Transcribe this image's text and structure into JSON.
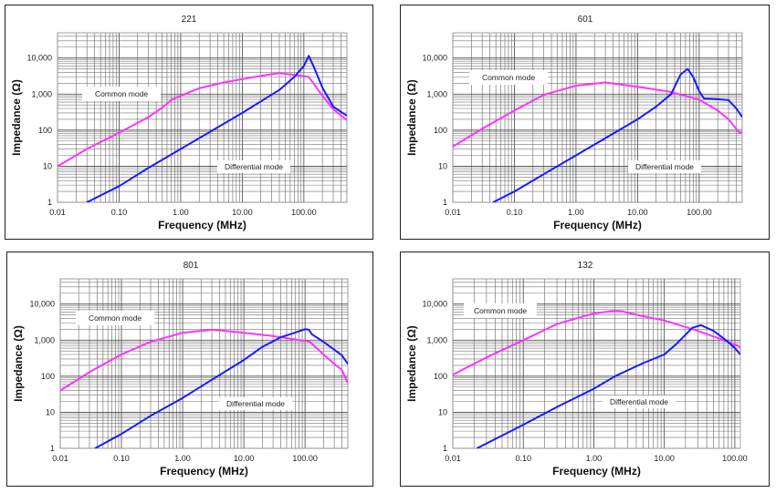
{
  "colors": {
    "common_mode": "#ff33ff",
    "differential_mode": "#1a1aff",
    "grid": "#555555",
    "border": "#222222"
  },
  "chart_data": [
    {
      "type": "line",
      "title": "221",
      "xlabel": "Frequency (MHz)",
      "ylabel": "Impedance (Ω)",
      "xscale": "log",
      "yscale": "log",
      "xlim": [
        0.01,
        500
      ],
      "ylim": [
        1,
        50000
      ],
      "xticks": [
        0.01,
        0.1,
        1,
        10,
        100
      ],
      "xtick_labels": [
        "0.01",
        "0.10",
        "1.00",
        "10.00",
        "100.00"
      ],
      "yticks": [
        1,
        10,
        100,
        1000,
        10000
      ],
      "ytick_labels": [
        "1",
        "10",
        "100",
        "1,000",
        "10,000"
      ],
      "grid": true,
      "annotations": [
        {
          "text": "Common mode",
          "x": 0.07,
          "y": 1000
        },
        {
          "text": "Differential mode",
          "x": 20,
          "y": 10
        }
      ],
      "series": [
        {
          "name": "Common mode",
          "color_key": "common_mode",
          "x": [
            0.01,
            0.03,
            0.1,
            0.3,
            0.5,
            0.7,
            1,
            2,
            5,
            10,
            20,
            40,
            80,
            120,
            200,
            300,
            500
          ],
          "y": [
            10,
            30,
            85,
            230,
            420,
            680,
            900,
            1450,
            2100,
            2600,
            3200,
            3800,
            3300,
            3000,
            900,
            380,
            190
          ]
        },
        {
          "name": "Differential mode",
          "color_key": "differential_mode",
          "x": [
            0.03,
            0.1,
            0.3,
            1,
            3,
            10,
            40,
            70,
            100,
            120,
            150,
            200,
            300,
            500
          ],
          "y": [
            1,
            2.8,
            9,
            30,
            90,
            300,
            1300,
            3000,
            6000,
            11500,
            5000,
            1500,
            450,
            250
          ]
        }
      ]
    },
    {
      "type": "line",
      "title": "601",
      "xlabel": "Frequency (MHz)",
      "ylabel": "Impedance (Ω)",
      "xscale": "log",
      "yscale": "log",
      "xlim": [
        0.01,
        500
      ],
      "ylim": [
        1,
        50000
      ],
      "xticks": [
        0.01,
        0.1,
        1,
        10,
        100
      ],
      "xtick_labels": [
        "0.01",
        "0.10",
        "1.00",
        "10.00",
        "100.00"
      ],
      "yticks": [
        1,
        10,
        100,
        1000,
        10000
      ],
      "ytick_labels": [
        "1",
        "10",
        "100",
        "1,000",
        "10,000"
      ],
      "grid": true,
      "annotations": [
        {
          "text": "Common mode",
          "x": 0.06,
          "y": 2000
        },
        {
          "text": "Differential mode",
          "x": 40,
          "y": 10
        }
      ],
      "series": [
        {
          "name": "Common mode",
          "color_key": "common_mode",
          "x": [
            0.01,
            0.03,
            0.1,
            0.3,
            1,
            3,
            10,
            30,
            60,
            100,
            200,
            300,
            450,
            500
          ],
          "y": [
            35,
            110,
            350,
            950,
            1700,
            2100,
            1600,
            1200,
            900,
            700,
            350,
            200,
            85,
            85
          ]
        },
        {
          "name": "Differential mode",
          "color_key": "differential_mode",
          "x": [
            0.045,
            0.1,
            0.3,
            1,
            3,
            10,
            20,
            35,
            50,
            65,
            80,
            100,
            120,
            200,
            300,
            400,
            500
          ],
          "y": [
            1,
            2,
            6,
            20,
            60,
            200,
            450,
            1000,
            3500,
            5000,
            3000,
            1200,
            750,
            720,
            680,
            400,
            230
          ]
        }
      ]
    },
    {
      "type": "line",
      "title": "801",
      "xlabel": "Frequency (MHz)",
      "ylabel": "Impedance (Ω)",
      "xscale": "log",
      "yscale": "log",
      "xlim": [
        0.01,
        500
      ],
      "ylim": [
        1,
        50000
      ],
      "xticks": [
        0.01,
        0.1,
        1,
        10,
        100
      ],
      "xtick_labels": [
        "0.01",
        "0.10",
        "1.00",
        "10.00",
        "100.00"
      ],
      "yticks": [
        1,
        10,
        100,
        1000,
        10000
      ],
      "ytick_labels": [
        "1",
        "10",
        "100",
        "1,000",
        "10,000"
      ],
      "grid": true,
      "annotations": [
        {
          "text": "Common mode",
          "x": 0.06,
          "y": 4000
        },
        {
          "text": "Differential mode",
          "x": 20,
          "y": 20
        }
      ],
      "series": [
        {
          "name": "Common mode",
          "color_key": "common_mode",
          "x": [
            0.01,
            0.03,
            0.1,
            0.3,
            1,
            3,
            10,
            30,
            100,
            120,
            200,
            300,
            400,
            500
          ],
          "y": [
            40,
            130,
            400,
            900,
            1600,
            1950,
            1600,
            1300,
            950,
            900,
            400,
            220,
            150,
            65
          ]
        },
        {
          "name": "Differential mode",
          "color_key": "differential_mode",
          "x": [
            0.037,
            0.1,
            0.3,
            1,
            3,
            10,
            20,
            40,
            60,
            100,
            115,
            130,
            200,
            400,
            500
          ],
          "y": [
            1,
            2.5,
            8,
            25,
            80,
            280,
            650,
            1200,
            1500,
            2000,
            1950,
            1450,
            900,
            380,
            220
          ]
        }
      ]
    },
    {
      "type": "line",
      "title": "132",
      "xlabel": "Frequency (MHz)",
      "ylabel": "Impedance (Ω)",
      "xscale": "log",
      "yscale": "log",
      "xlim": [
        0.01,
        120
      ],
      "ylim": [
        1,
        50000
      ],
      "xticks": [
        0.01,
        0.1,
        1,
        10,
        100
      ],
      "xtick_labels": [
        "0.01",
        "0.10",
        "1.00",
        "10.00",
        "100.00"
      ],
      "yticks": [
        1,
        10,
        100,
        1000,
        10000
      ],
      "ytick_labels": [
        "1",
        "10",
        "100",
        "1,000",
        "10,000"
      ],
      "grid": true,
      "annotations": [
        {
          "text": "Common mode",
          "x": 0.04,
          "y": 7000
        },
        {
          "text": "Differential mode",
          "x": 5,
          "y": 20
        }
      ],
      "series": [
        {
          "name": "Common mode",
          "color_key": "common_mode",
          "x": [
            0.01,
            0.03,
            0.1,
            0.3,
            1,
            2,
            2.5,
            5,
            10,
            30,
            60,
            100,
            120
          ],
          "y": [
            110,
            330,
            1000,
            2800,
            5500,
            6500,
            6300,
            4600,
            3500,
            1800,
            1100,
            750,
            650
          ]
        },
        {
          "name": "Differential mode",
          "color_key": "differential_mode",
          "x": [
            0.022,
            0.1,
            0.3,
            1,
            2,
            5,
            10,
            15,
            25,
            33,
            50,
            80,
            100,
            120
          ],
          "y": [
            1,
            4.5,
            14,
            45,
            100,
            230,
            400,
            800,
            2200,
            2600,
            1800,
            900,
            600,
            400
          ]
        }
      ]
    }
  ]
}
